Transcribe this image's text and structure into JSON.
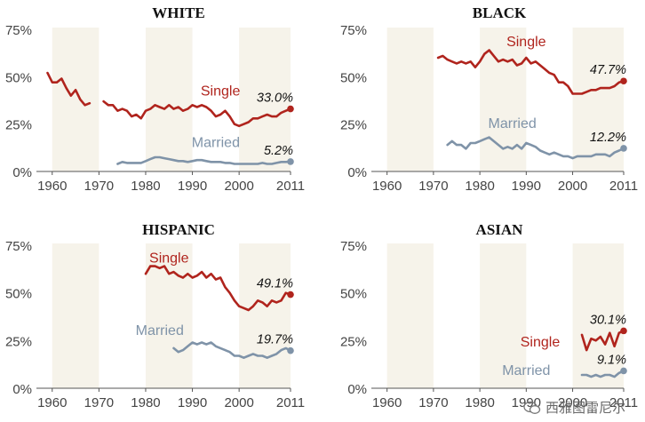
{
  "x_ticks": [
    1960,
    1970,
    1980,
    1990,
    2000,
    "2011"
  ],
  "y_ticks": [
    "0%",
    "25%",
    "50%",
    "75%"
  ],
  "colors": {
    "single": "#b0241d",
    "married": "#7f93a8",
    "axis_text": "#444444",
    "band": "#f6f3ea"
  },
  "chart_data": [
    {
      "type": "line",
      "title": "WHITE",
      "xlim": [
        1957,
        2011
      ],
      "ylim": [
        0,
        75
      ],
      "series": [
        {
          "name": "Single",
          "key": "single",
          "end_label": "33.0%",
          "segments": [
            {
              "x": [
                1959,
                1960,
                1961,
                1962,
                1963,
                1964,
                1965,
                1966,
                1967,
                1968
              ],
              "y": [
                52,
                47,
                47,
                49,
                44,
                40,
                43,
                38,
                35,
                36
              ]
            },
            {
              "x": [
                1971,
                1972,
                1973,
                1974,
                1975,
                1976,
                1977,
                1978,
                1979,
                1980,
                1981,
                1982,
                1983,
                1984,
                1985,
                1986,
                1987,
                1988,
                1989,
                1990,
                1991,
                1992,
                1993,
                1994,
                1995,
                1996,
                1997,
                1998,
                1999,
                2000,
                2001,
                2002,
                2003,
                2004,
                2005,
                2006,
                2007,
                2008,
                2009,
                2010,
                2011
              ],
              "y": [
                37,
                35,
                35,
                32,
                33,
                32,
                29,
                30,
                28,
                32,
                33,
                35,
                34,
                33,
                35,
                33,
                34,
                32,
                33,
                35,
                34,
                35,
                34,
                32,
                29,
                30,
                32,
                29,
                25,
                24,
                25,
                26,
                28,
                28,
                29,
                30,
                29,
                29,
                31,
                32,
                33
              ]
            }
          ]
        },
        {
          "name": "Married",
          "key": "married",
          "end_label": "5.2%",
          "segments": [
            {
              "x": [
                1974,
                1975,
                1976,
                1977,
                1978,
                1979,
                1980,
                1981,
                1982,
                1983,
                1984,
                1985,
                1986,
                1987,
                1988,
                1989,
                1990,
                1991,
                1992,
                1993,
                1994,
                1995,
                1996,
                1997,
                1998,
                1999,
                2000,
                2001,
                2002,
                2003,
                2004,
                2005,
                2006,
                2007,
                2008,
                2009,
                2010,
                2011
              ],
              "y": [
                4,
                5,
                4.5,
                4.5,
                4.5,
                4.5,
                5.5,
                6.5,
                7.5,
                7.5,
                7,
                6.5,
                6,
                5.5,
                5.5,
                5,
                5.5,
                6,
                6,
                5.5,
                5,
                5,
                5,
                4.5,
                4.5,
                4,
                4,
                4,
                4,
                4,
                4,
                4.5,
                4,
                4,
                4.5,
                5,
                5,
                5.2
              ]
            }
          ]
        }
      ],
      "label_positions": {
        "Single": [
          1996,
          40
        ],
        "Married": [
          1995,
          13
        ]
      }
    },
    {
      "type": "line",
      "title": "BLACK",
      "xlim": [
        1957,
        2011
      ],
      "ylim": [
        0,
        75
      ],
      "series": [
        {
          "name": "Single",
          "key": "single",
          "end_label": "47.7%",
          "segments": [
            {
              "x": [
                1971,
                1972,
                1973,
                1974,
                1975,
                1976,
                1977,
                1978,
                1979,
                1980,
                1981,
                1982,
                1983,
                1984,
                1985,
                1986,
                1987,
                1988,
                1989,
                1990,
                1991,
                1992,
                1993,
                1994,
                1995,
                1996,
                1997,
                1998,
                1999,
                2000,
                2001,
                2002,
                2003,
                2004,
                2005,
                2006,
                2007,
                2008,
                2009,
                2010,
                2011
              ],
              "y": [
                60,
                61,
                59,
                58,
                57,
                58,
                57,
                58,
                55,
                58,
                62,
                64,
                61,
                58,
                59,
                58,
                59,
                56,
                57,
                60,
                57,
                58,
                56,
                54,
                52,
                51,
                47,
                47,
                45,
                41,
                41,
                41,
                42,
                43,
                43,
                44,
                44,
                44,
                45,
                47,
                47.7
              ]
            }
          ]
        },
        {
          "name": "Married",
          "key": "married",
          "end_label": "12.2%",
          "segments": [
            {
              "x": [
                1973,
                1974,
                1975,
                1976,
                1977,
                1978,
                1979,
                1980,
                1981,
                1982,
                1983,
                1984,
                1985,
                1986,
                1987,
                1988,
                1989,
                1990,
                1991,
                1992,
                1993,
                1994,
                1995,
                1996,
                1997,
                1998,
                1999,
                2000,
                2001,
                2002,
                2003,
                2004,
                2005,
                2006,
                2007,
                2008,
                2009,
                2010,
                2011
              ],
              "y": [
                14,
                16,
                14,
                14,
                12,
                15,
                15,
                16,
                17,
                18,
                16,
                14,
                12,
                13,
                12,
                14,
                12,
                15,
                14,
                13,
                11,
                10,
                9,
                10,
                9,
                8,
                8,
                7,
                8,
                8,
                8,
                8,
                9,
                9,
                9,
                8,
                10,
                11,
                12.2
              ]
            }
          ]
        }
      ],
      "label_positions": {
        "Single": [
          1990,
          66
        ],
        "Married": [
          1987,
          23
        ]
      }
    },
    {
      "type": "line",
      "title": "HISPANIC",
      "xlim": [
        1957,
        2011
      ],
      "ylim": [
        0,
        75
      ],
      "series": [
        {
          "name": "Single",
          "key": "single",
          "end_label": "49.1%",
          "segments": [
            {
              "x": [
                1980,
                1981,
                1982,
                1983,
                1984,
                1985,
                1986,
                1987,
                1988,
                1989,
                1990,
                1991,
                1992,
                1993,
                1994,
                1995,
                1996,
                1997,
                1998,
                1999,
                2000,
                2001,
                2002,
                2003,
                2004,
                2005,
                2006,
                2007,
                2008,
                2009,
                2010,
                2011
              ],
              "y": [
                60,
                64,
                64,
                63,
                64,
                60,
                61,
                59,
                58,
                60,
                58,
                59,
                61,
                58,
                60,
                57,
                58,
                53,
                50,
                46,
                43,
                42,
                41,
                43,
                46,
                45,
                43,
                46,
                45,
                46,
                50,
                49.1
              ]
            }
          ]
        },
        {
          "name": "Married",
          "key": "married",
          "end_label": "19.7%",
          "segments": [
            {
              "x": [
                1986,
                1987,
                1988,
                1989,
                1990,
                1991,
                1992,
                1993,
                1994,
                1995,
                1996,
                1997,
                1998,
                1999,
                2000,
                2001,
                2002,
                2003,
                2004,
                2005,
                2006,
                2007,
                2008,
                2009,
                2010,
                2011
              ],
              "y": [
                21,
                19,
                20,
                22,
                24,
                23,
                24,
                23,
                24,
                22,
                21,
                20,
                19,
                17,
                17,
                16,
                17,
                18,
                17,
                17,
                16,
                17,
                18,
                20,
                21,
                19.7
              ]
            }
          ]
        }
      ],
      "label_positions": {
        "Single": [
          1985,
          66
        ],
        "Married": [
          1983,
          28
        ]
      }
    },
    {
      "type": "line",
      "title": "ASIAN",
      "xlim": [
        1957,
        2011
      ],
      "ylim": [
        0,
        75
      ],
      "series": [
        {
          "name": "Single",
          "key": "single",
          "end_label": "30.1%",
          "segments": [
            {
              "x": [
                2002,
                2003,
                2004,
                2005,
                2006,
                2007,
                2008,
                2009,
                2010,
                2011
              ],
              "y": [
                28,
                20,
                26,
                25,
                27,
                23,
                29,
                22,
                29,
                30.1
              ]
            }
          ]
        },
        {
          "name": "Married",
          "key": "married",
          "end_label": "9.1%",
          "segments": [
            {
              "x": [
                2002,
                2003,
                2004,
                2005,
                2006,
                2007,
                2008,
                2009,
                2010,
                2011
              ],
              "y": [
                7,
                7,
                6,
                7,
                6,
                7,
                7,
                6,
                8,
                9.1
              ]
            }
          ]
        }
      ],
      "label_positions": {
        "Single": [
          1993,
          22
        ],
        "Married": [
          1990,
          7
        ]
      }
    }
  ],
  "watermark": "西雅图雷尼尔"
}
